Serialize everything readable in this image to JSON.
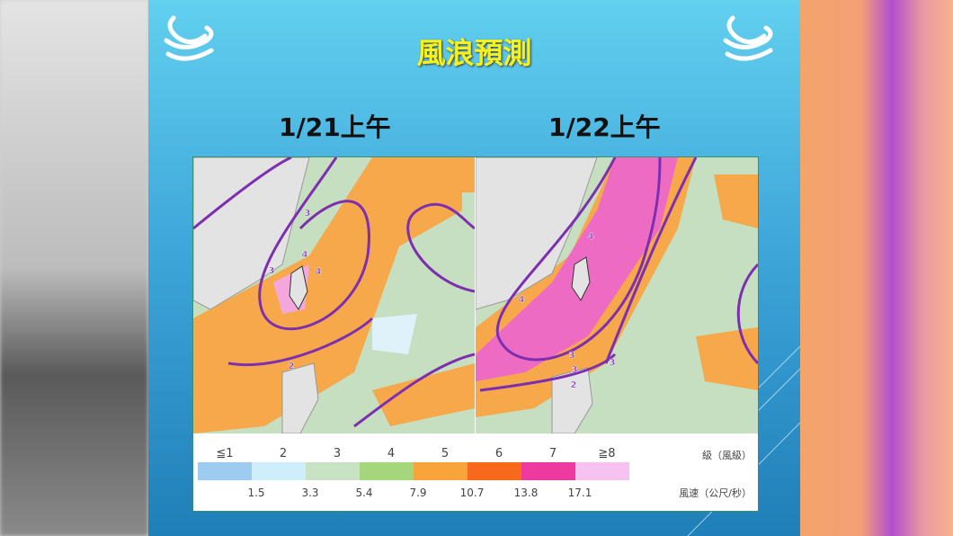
{
  "header": {
    "title": "風浪預測"
  },
  "maps": [
    {
      "label": "1/21上午",
      "contours": [
        "3",
        "4",
        "4",
        "3",
        "2"
      ]
    },
    {
      "label": "1/22上午",
      "contours": [
        "4",
        "3",
        "3",
        "2",
        "3",
        "4"
      ]
    }
  ],
  "legend": {
    "levels": [
      "≦1",
      "2",
      "3",
      "4",
      "5",
      "6",
      "7",
      "≧8"
    ],
    "colors": [
      "#9ecbf0",
      "#cdeefa",
      "#c8e3c4",
      "#a6d67c",
      "#f9a43a",
      "#f76a1d",
      "#ec3a9e",
      "#f6c2f0"
    ],
    "level_unit": "級（風級）",
    "speeds": [
      "1.5",
      "3.3",
      "5.4",
      "7.9",
      "10.7",
      "13.8",
      "17.1"
    ],
    "speed_unit": "風速（公尺/秒）"
  }
}
